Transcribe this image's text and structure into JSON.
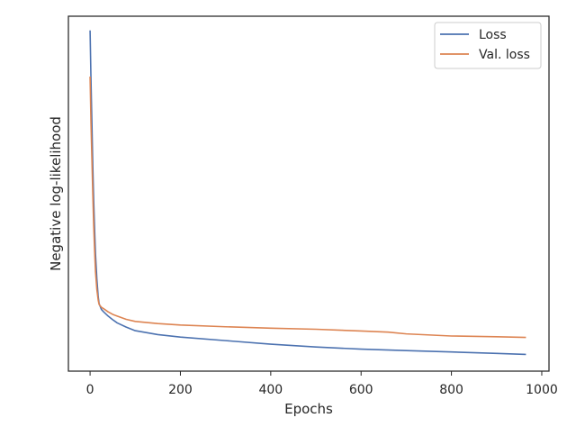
{
  "chart_data": {
    "type": "line",
    "title": "",
    "xlabel": "Epochs",
    "ylabel": "Negative log-likelihood",
    "xlim": [
      -48,
      1016
    ],
    "ylim": [
      0,
      1
    ],
    "x_ticks": [
      0,
      200,
      400,
      600,
      800,
      1000
    ],
    "y_ticks": [],
    "y_ticks_note": "no y tick labels printed; values are relative positions",
    "grid": false,
    "legend_position": "top-right",
    "series": [
      {
        "name": "Loss",
        "color": "#4c72b0",
        "x": [
          0,
          2,
          4,
          6,
          8,
          10,
          12,
          15,
          18,
          20,
          25,
          30,
          40,
          50,
          60,
          80,
          100,
          150,
          200,
          300,
          400,
          500,
          600,
          700,
          800,
          900,
          965
        ],
        "y": [
          0.96,
          0.82,
          0.7,
          0.58,
          0.48,
          0.4,
          0.33,
          0.26,
          0.21,
          0.19,
          0.174,
          0.167,
          0.155,
          0.145,
          0.136,
          0.124,
          0.114,
          0.103,
          0.096,
          0.086,
          0.076,
          0.068,
          0.062,
          0.058,
          0.054,
          0.05,
          0.047
        ]
      },
      {
        "name": "Val. loss",
        "color": "#dd8452",
        "x": [
          0,
          2,
          4,
          6,
          8,
          10,
          12,
          15,
          18,
          20,
          25,
          30,
          40,
          50,
          60,
          80,
          100,
          150,
          200,
          300,
          400,
          500,
          600,
          660,
          700,
          800,
          900,
          965
        ],
        "y": [
          0.83,
          0.7,
          0.6,
          0.5,
          0.41,
          0.34,
          0.28,
          0.23,
          0.2,
          0.188,
          0.18,
          0.176,
          0.167,
          0.16,
          0.155,
          0.146,
          0.14,
          0.134,
          0.13,
          0.125,
          0.121,
          0.118,
          0.113,
          0.11,
          0.105,
          0.099,
          0.097,
          0.095
        ]
      }
    ]
  }
}
